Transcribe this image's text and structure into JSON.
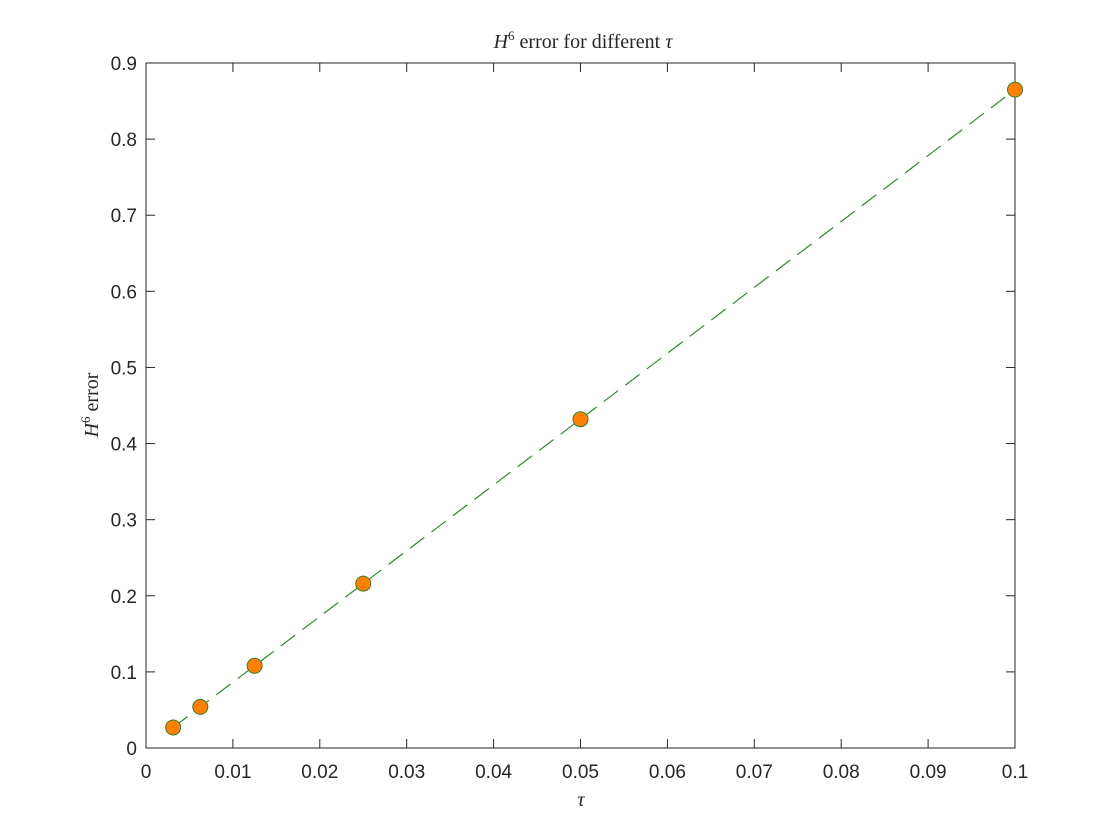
{
  "chart_data": {
    "type": "line",
    "title": {
      "main": "H",
      "sup": "6",
      "rest": " error for different ",
      "symbol": "τ"
    },
    "xlabel": "τ",
    "ylabel": {
      "main": "H",
      "sup": "6",
      "rest": " error"
    },
    "xlim": [
      0,
      0.1
    ],
    "ylim": [
      0,
      0.9
    ],
    "xticks": [
      0,
      0.01,
      0.02,
      0.03,
      0.04,
      0.05,
      0.06,
      0.07,
      0.08,
      0.09,
      0.1
    ],
    "xtick_labels": [
      "0",
      "0.01",
      "0.02",
      "0.03",
      "0.04",
      "0.05",
      "0.06",
      "0.07",
      "0.08",
      "0.09",
      "0.1"
    ],
    "yticks": [
      0,
      0.1,
      0.2,
      0.3,
      0.4,
      0.5,
      0.6,
      0.7,
      0.8,
      0.9
    ],
    "ytick_labels": [
      "0",
      "0.1",
      "0.2",
      "0.3",
      "0.4",
      "0.5",
      "0.6",
      "0.7",
      "0.8",
      "0.9"
    ],
    "grid": false,
    "series": [
      {
        "style": "dashed-line-with-markers",
        "line_color": "#2e8b2e",
        "marker_fill": "#ff8000",
        "marker_edge": "#3a7a2a",
        "x": [
          0.003125,
          0.00625,
          0.0125,
          0.025,
          0.05,
          0.1
        ],
        "y": [
          0.027,
          0.054,
          0.108,
          0.216,
          0.432,
          0.865
        ]
      }
    ]
  }
}
